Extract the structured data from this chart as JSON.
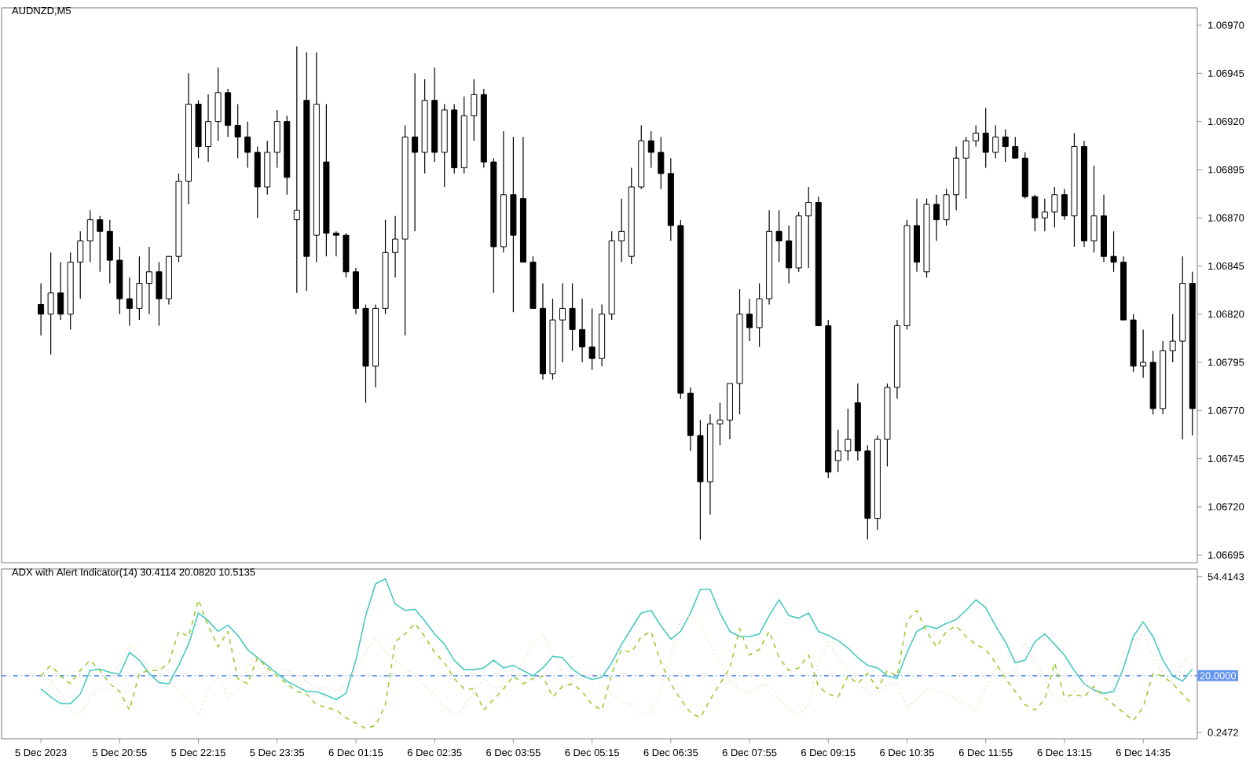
{
  "chart_data": [
    {
      "type": "candlestick",
      "title": "AUDNZD,M5",
      "categories": [
        null,
        null,
        null,
        null,
        null,
        null,
        null,
        null,
        null,
        null,
        null,
        null,
        null,
        null,
        null,
        null,
        null,
        null,
        null,
        null,
        null,
        null,
        null,
        null,
        null,
        null,
        null,
        null,
        null,
        null,
        null,
        null,
        null,
        null,
        null,
        null,
        null,
        null,
        null,
        null,
        null,
        null,
        null,
        null,
        null,
        null,
        null,
        null,
        null,
        null,
        null,
        null,
        null,
        null,
        null,
        null,
        null,
        null,
        null,
        null,
        null,
        null,
        null,
        null,
        null,
        null,
        null,
        null,
        null,
        null,
        null,
        null,
        null,
        null,
        null,
        null,
        null,
        null,
        null,
        null,
        null,
        null,
        null,
        null,
        null,
        null,
        null,
        null,
        null,
        null,
        null,
        null,
        null,
        null,
        null,
        null,
        null,
        null,
        null,
        null,
        null,
        null,
        null,
        null,
        null,
        null,
        null,
        null,
        null,
        null,
        null,
        null,
        null,
        null,
        null,
        null,
        null,
        null
      ],
      "ohlc": [
        [
          1.06825,
          1.06836,
          1.06809,
          1.0682
        ],
        [
          1.0682,
          1.06852,
          1.06799,
          1.06831
        ],
        [
          1.06831,
          1.06847,
          1.06817,
          1.0682
        ],
        [
          1.0682,
          1.06852,
          1.06812,
          1.06847
        ],
        [
          1.06847,
          1.06863,
          1.06828,
          1.06858
        ],
        [
          1.06858,
          1.06874,
          1.06847,
          1.06869
        ],
        [
          1.06869,
          1.06871,
          1.06842,
          1.06863
        ],
        [
          1.06863,
          1.06869,
          1.06836,
          1.06848
        ],
        [
          1.06848,
          1.06855,
          1.0682,
          1.06828
        ],
        [
          1.06828,
          1.06839,
          1.06814,
          1.06823
        ],
        [
          1.06823,
          1.0685,
          1.06817,
          1.06836
        ],
        [
          1.06836,
          1.06855,
          1.0682,
          1.06842
        ],
        [
          1.06842,
          1.06847,
          1.06814,
          1.06828
        ],
        [
          1.06828,
          1.0685,
          1.06825,
          1.0685
        ],
        [
          1.0685,
          1.06893,
          1.06847,
          1.06889
        ],
        [
          1.06889,
          1.06945,
          1.06877,
          1.06929
        ],
        [
          1.06929,
          1.06931,
          1.06901,
          1.06907
        ],
        [
          1.06907,
          1.06934,
          1.06899,
          1.0692
        ],
        [
          1.0692,
          1.06948,
          1.0691,
          1.06935
        ],
        [
          1.06935,
          1.06937,
          1.06912,
          1.06918
        ],
        [
          1.06918,
          1.06929,
          1.06901,
          1.06912
        ],
        [
          1.06912,
          1.0692,
          1.06896,
          1.06904
        ],
        [
          1.06904,
          1.06907,
          1.0687,
          1.06886
        ],
        [
          1.06886,
          1.0691,
          1.06882,
          1.06904
        ],
        [
          1.06904,
          1.06926,
          1.06896,
          1.0692
        ],
        [
          1.0692,
          1.06923,
          1.06882,
          1.06891
        ],
        [
          1.06869,
          1.06959,
          1.06831,
          1.06874
        ],
        [
          1.06931,
          1.06956,
          1.06832,
          1.0685
        ],
        [
          1.06861,
          1.06956,
          1.06847,
          1.06929
        ],
        [
          1.06899,
          1.06929,
          1.0685,
          1.06862
        ],
        [
          1.06862,
          1.06863,
          1.0685,
          1.06861
        ],
        [
          1.06861,
          1.06862,
          1.06839,
          1.06842
        ],
        [
          1.06842,
          1.06844,
          1.0682,
          1.06823
        ],
        [
          1.06823,
          1.06825,
          1.06774,
          1.06793
        ],
        [
          1.06793,
          1.06825,
          1.06782,
          1.06823
        ],
        [
          1.06823,
          1.06869,
          1.0682,
          1.06852
        ],
        [
          1.06852,
          1.06871,
          1.06839,
          1.06859
        ],
        [
          1.06859,
          1.06918,
          1.06809,
          1.06912
        ],
        [
          1.06912,
          1.06945,
          1.06863,
          1.06904
        ],
        [
          1.06904,
          1.06942,
          1.06893,
          1.06931
        ],
        [
          1.06931,
          1.06948,
          1.06899,
          1.06904
        ],
        [
          1.06904,
          1.06929,
          1.06886,
          1.06926
        ],
        [
          1.06926,
          1.06929,
          1.06893,
          1.06896
        ],
        [
          1.06896,
          1.06933,
          1.06893,
          1.06923
        ],
        [
          1.06923,
          1.06942,
          1.0691,
          1.06934
        ],
        [
          1.06934,
          1.06937,
          1.06896,
          1.06899
        ],
        [
          1.06899,
          1.06901,
          1.06831,
          1.06855
        ],
        [
          1.06855,
          1.06915,
          1.06852,
          1.06882
        ],
        [
          1.06882,
          1.06912,
          1.06821,
          1.06861
        ],
        [
          1.0688,
          1.06912,
          1.06847,
          1.06847
        ],
        [
          1.06847,
          1.0685,
          1.06823,
          1.06823
        ],
        [
          1.06823,
          1.06836,
          1.06786,
          1.06789
        ],
        [
          1.06789,
          1.06828,
          1.06786,
          1.06817
        ],
        [
          1.06817,
          1.06836,
          1.06795,
          1.06823
        ],
        [
          1.06823,
          1.06836,
          1.06801,
          1.06812
        ],
        [
          1.06812,
          1.06828,
          1.06795,
          1.06803
        ],
        [
          1.06803,
          1.06823,
          1.06791,
          1.06797
        ],
        [
          1.06797,
          1.06825,
          1.06793,
          1.0682
        ],
        [
          1.0682,
          1.06863,
          1.06817,
          1.06858
        ],
        [
          1.06858,
          1.0688,
          1.06847,
          1.06863
        ],
        [
          1.0685,
          1.06896,
          1.06846,
          1.06886
        ],
        [
          1.06886,
          1.06918,
          1.06885,
          1.0691
        ],
        [
          1.0691,
          1.06915,
          1.06896,
          1.06904
        ],
        [
          1.06904,
          1.06912,
          1.06885,
          1.06893
        ],
        [
          1.06893,
          1.06901,
          1.06858,
          1.06866
        ],
        [
          1.06866,
          1.06869,
          1.06776,
          1.06779
        ],
        [
          1.06779,
          1.06782,
          1.06749,
          1.06757
        ],
        [
          1.06757,
          1.06765,
          1.06703,
          1.06733
        ],
        [
          1.06733,
          1.06768,
          1.06716,
          1.06763
        ],
        [
          1.06763,
          1.06774,
          1.06752,
          1.06765
        ],
        [
          1.06765,
          1.06784,
          1.06755,
          1.06784
        ],
        [
          1.06784,
          1.06833,
          1.06768,
          1.0682
        ],
        [
          1.0682,
          1.06828,
          1.06806,
          1.06813
        ],
        [
          1.06813,
          1.06836,
          1.06803,
          1.06828
        ],
        [
          1.06828,
          1.06874,
          1.06825,
          1.06863
        ],
        [
          1.06863,
          1.06874,
          1.06847,
          1.06858
        ],
        [
          1.06858,
          1.06866,
          1.06836,
          1.06844
        ],
        [
          1.06844,
          1.06873,
          1.06842,
          1.06871
        ],
        [
          1.06871,
          1.06886,
          1.06844,
          1.06878
        ],
        [
          1.06878,
          1.06881,
          1.06814,
          1.06814
        ],
        [
          1.06814,
          1.06817,
          1.06735,
          1.06738
        ],
        [
          1.06744,
          1.0676,
          1.06738,
          1.06749
        ],
        [
          1.06749,
          1.06771,
          1.06744,
          1.06755
        ],
        [
          1.06774,
          1.06784,
          1.06744,
          1.06749
        ],
        [
          1.06749,
          1.06752,
          1.06703,
          1.06714
        ],
        [
          1.06714,
          1.06757,
          1.06708,
          1.06755
        ],
        [
          1.06755,
          1.06784,
          1.06741,
          1.06782
        ],
        [
          1.06782,
          1.06817,
          1.06776,
          1.06814
        ],
        [
          1.06814,
          1.06869,
          1.06812,
          1.06866
        ],
        [
          1.06866,
          1.0688,
          1.06842,
          1.06847
        ],
        [
          1.06842,
          1.0688,
          1.06839,
          1.06877
        ],
        [
          1.06877,
          1.06882,
          1.06858,
          1.06869
        ],
        [
          1.06869,
          1.06885,
          1.06866,
          1.06882
        ],
        [
          1.06882,
          1.06907,
          1.06874,
          1.06901
        ],
        [
          1.06901,
          1.06912,
          1.0688,
          1.0691
        ],
        [
          1.0691,
          1.06918,
          1.06907,
          1.06914
        ],
        [
          1.06914,
          1.06927,
          1.06896,
          1.06904
        ],
        [
          1.06904,
          1.06918,
          1.06901,
          1.06912
        ],
        [
          1.06912,
          1.06916,
          1.06899,
          1.06907
        ],
        [
          1.06907,
          1.06912,
          1.06901,
          1.06901
        ],
        [
          1.06901,
          1.06904,
          1.0688,
          1.06881
        ],
        [
          1.06881,
          1.06882,
          1.06863,
          1.0687
        ],
        [
          1.0687,
          1.0688,
          1.06863,
          1.06873
        ],
        [
          1.06873,
          1.06886,
          1.06865,
          1.06882
        ],
        [
          1.06882,
          1.06885,
          1.06869,
          1.06871
        ],
        [
          1.06871,
          1.06914,
          1.06855,
          1.06907
        ],
        [
          1.06907,
          1.0691,
          1.06855,
          1.06858
        ],
        [
          1.06858,
          1.06897,
          1.06852,
          1.06871
        ],
        [
          1.06871,
          1.06882,
          1.06847,
          1.0685
        ],
        [
          1.0685,
          1.06863,
          1.06842,
          1.06847
        ],
        [
          1.06847,
          1.0685,
          1.06817,
          1.06817
        ],
        [
          1.06817,
          1.0682,
          1.0679,
          1.06793
        ],
        [
          1.06793,
          1.06812,
          1.06787,
          1.06795
        ],
        [
          1.06795,
          1.06801,
          1.06768,
          1.06771
        ],
        [
          1.06771,
          1.06806,
          1.06768,
          1.06801
        ],
        [
          1.06801,
          1.0682,
          1.06795,
          1.06806
        ],
        [
          1.06806,
          1.0685,
          1.06755,
          1.06836
        ],
        [
          1.06836,
          1.06842,
          1.06757,
          1.06771
        ]
      ],
      "ylim": [
        1.06691,
        1.06979
      ],
      "yticks": [
        {
          "value": 1.0697,
          "label": "1.06970"
        },
        {
          "value": 1.06945,
          "label": "1.06945"
        },
        {
          "value": 1.0692,
          "label": "1.06920"
        },
        {
          "value": 1.06895,
          "label": "1.06895"
        },
        {
          "value": 1.0687,
          "label": "1.06870"
        },
        {
          "value": 1.06845,
          "label": "1.06845"
        },
        {
          "value": 1.0682,
          "label": "1.06820"
        },
        {
          "value": 1.06795,
          "label": "1.06795"
        },
        {
          "value": 1.0677,
          "label": "1.06770"
        },
        {
          "value": 1.06745,
          "label": "1.06745"
        },
        {
          "value": 1.0672,
          "label": "1.06720"
        },
        {
          "value": 1.06695,
          "label": "1.06695"
        }
      ],
      "tick_labels": "y"
    },
    {
      "type": "line",
      "title": "ADX with Alert Indicator(14) 30.4114 20.0820 10.5135",
      "categories": [
        "5 Dec 2023",
        null,
        null,
        null,
        null,
        null,
        null,
        null,
        "5 Dec 20:55",
        null,
        null,
        null,
        null,
        null,
        null,
        null,
        "5 Dec 22:15",
        null,
        null,
        null,
        null,
        null,
        null,
        null,
        "5 Dec 23:35",
        null,
        null,
        null,
        null,
        null,
        null,
        null,
        "6 Dec 01:15",
        null,
        null,
        null,
        null,
        null,
        null,
        null,
        "6 Dec 02:35",
        null,
        null,
        null,
        null,
        null,
        null,
        null,
        "6 Dec 03:55",
        null,
        null,
        null,
        null,
        null,
        null,
        null,
        "6 Dec 05:15",
        null,
        null,
        null,
        null,
        null,
        null,
        null,
        "6 Dec 06:35",
        null,
        null,
        null,
        null,
        null,
        null,
        null,
        "6 Dec 07:55",
        null,
        null,
        null,
        null,
        null,
        null,
        null,
        "6 Dec 09:15",
        null,
        null,
        null,
        null,
        null,
        null,
        null,
        "6 Dec 10:35",
        null,
        null,
        null,
        null,
        null,
        null,
        null,
        "6 Dec 11:55",
        null,
        null,
        null,
        null,
        null,
        null,
        null,
        "6 Dec 13:15",
        null,
        null,
        null,
        null,
        null,
        null,
        null,
        "6 Dec 14:35",
        null,
        null,
        null,
        null,
        null
      ],
      "series": [
        {
          "color": "#48c9c0",
          "line_style": "solid",
          "values": [
            15.4,
            12.6,
            10.3,
            10.3,
            13.6,
            21.8,
            22.3,
            21.2,
            20.5,
            28.1,
            25.4,
            20.8,
            17.6,
            17.2,
            23.6,
            30.9,
            41.8,
            39.1,
            35.4,
            37.6,
            34.0,
            29.1,
            26.3,
            23.6,
            20.8,
            18.1,
            16.3,
            14.5,
            14.5,
            13.2,
            11.7,
            13.9,
            25.4,
            40.9,
            51.9,
            53.7,
            44.9,
            42.7,
            43.1,
            39.1,
            34.5,
            30.9,
            25.4,
            22.1,
            22.1,
            22.7,
            25.4,
            22.7,
            23.6,
            21.8,
            19.9,
            22.7,
            26.7,
            26.3,
            22.3,
            19.9,
            18.7,
            19.4,
            24.5,
            30.9,
            36.4,
            41.8,
            42.7,
            37.3,
            32.7,
            35.4,
            41.8,
            50.0,
            50.0,
            41.8,
            35.4,
            33.6,
            33.6,
            34.5,
            40.9,
            46.4,
            40.9,
            40.0,
            41.8,
            35.4,
            34.0,
            32.2,
            29.6,
            26.3,
            23.6,
            22.7,
            19.9,
            19.0,
            28.1,
            35.4,
            37.3,
            36.4,
            38.2,
            39.5,
            42.7,
            46.4,
            43.7,
            37.3,
            31.8,
            24.5,
            25.4,
            31.8,
            34.5,
            30.9,
            27.2,
            21.8,
            17.2,
            15.0,
            13.9,
            14.5,
            22.7,
            33.6,
            38.7,
            33.6,
            25.4,
            19.9,
            18.1,
            22.3
          ]
        },
        {
          "color": "#9acd32",
          "line_style": "dashed",
          "values": [
            19.9,
            23.6,
            19.9,
            17.2,
            21.8,
            25.4,
            21.8,
            17.2,
            14.5,
            8.1,
            20.8,
            21.8,
            21.8,
            24.5,
            35.4,
            33.6,
            46.4,
            37.3,
            30.0,
            35.4,
            19.0,
            17.2,
            26.3,
            22.7,
            19.9,
            17.2,
            14.5,
            13.6,
            9.9,
            9.0,
            8.1,
            5.4,
            3.5,
            1.7,
            2.6,
            9.9,
            31.8,
            34.5,
            38.2,
            33.6,
            28.1,
            24.5,
            19.0,
            15.4,
            15.4,
            8.1,
            11.7,
            15.4,
            19.9,
            17.2,
            19.0,
            19.9,
            12.6,
            16.3,
            17.2,
            14.5,
            9.9,
            8.1,
            20.8,
            29.1,
            28.1,
            33.6,
            35.4,
            24.5,
            17.2,
            11.7,
            7.2,
            5.4,
            11.7,
            17.2,
            22.7,
            36.4,
            27.2,
            29.1,
            35.4,
            26.3,
            21.8,
            22.7,
            27.2,
            16.3,
            13.6,
            12.6,
            19.9,
            17.2,
            20.8,
            15.4,
            21.8,
            19.9,
            39.1,
            42.7,
            35.4,
            30.0,
            35.4,
            37.3,
            33.6,
            30.9,
            29.1,
            24.5,
            19.0,
            14.5,
            9.9,
            8.1,
            11.7,
            24.5,
            12.6,
            13.6,
            12.6,
            16.3,
            12.6,
            9.9,
            7.2,
            4.4,
            9.0,
            20.8,
            19.9,
            17.2,
            13.6,
            9.9
          ]
        },
        {
          "color": "#ffdab9",
          "line_style": "dotted",
          "values": [
            20.8,
            18.1,
            13.6,
            8.1,
            6.3,
            12.6,
            15.4,
            15.4,
            24.5,
            30.9,
            27.2,
            22.7,
            22.7,
            19.0,
            14.5,
            11.7,
            6.3,
            15.4,
            19.9,
            12.6,
            15.4,
            22.7,
            27.2,
            20.8,
            22.7,
            21.8,
            19.9,
            18.1,
            15.4,
            16.3,
            14.5,
            17.2,
            22.7,
            28.1,
            33.6,
            28.1,
            25.4,
            22.7,
            19.9,
            16.3,
            13.6,
            9.0,
            6.3,
            9.0,
            14.5,
            19.0,
            15.4,
            16.3,
            21.8,
            24.5,
            30.9,
            34.5,
            27.2,
            20.8,
            18.1,
            19.9,
            20.8,
            17.2,
            13.6,
            10.8,
            9.9,
            6.3,
            7.2,
            15.4,
            27.2,
            39.1,
            40.9,
            38.2,
            30.9,
            24.5,
            18.1,
            15.4,
            13.6,
            16.3,
            17.2,
            11.7,
            8.1,
            6.3,
            9.9,
            24.5,
            31.8,
            26.3,
            21.8,
            17.2,
            13.6,
            13.6,
            17.2,
            17.2,
            9.0,
            11.7,
            15.4,
            14.5,
            13.6,
            11.7,
            9.9,
            8.1,
            15.4,
            22.7,
            20.8,
            21.8,
            31.8,
            24.5,
            19.0,
            11.7,
            10.8,
            14.5,
            17.2,
            15.4,
            10.8,
            17.2,
            28.1,
            30.0,
            35.4,
            26.3,
            20.8,
            17.2,
            24.5,
            27.2
          ]
        }
      ],
      "ylim": [
        -1.9,
        57.1
      ],
      "yticks": [
        {
          "value": 54.4143,
          "label": "54.4143"
        },
        {
          "value": 0.2472,
          "label": "0.2472"
        }
      ],
      "ref_lines": [
        {
          "axis": "y",
          "value": 20,
          "label": "20.0000",
          "color": "#6495ed",
          "line_style": "dashed"
        }
      ]
    }
  ]
}
